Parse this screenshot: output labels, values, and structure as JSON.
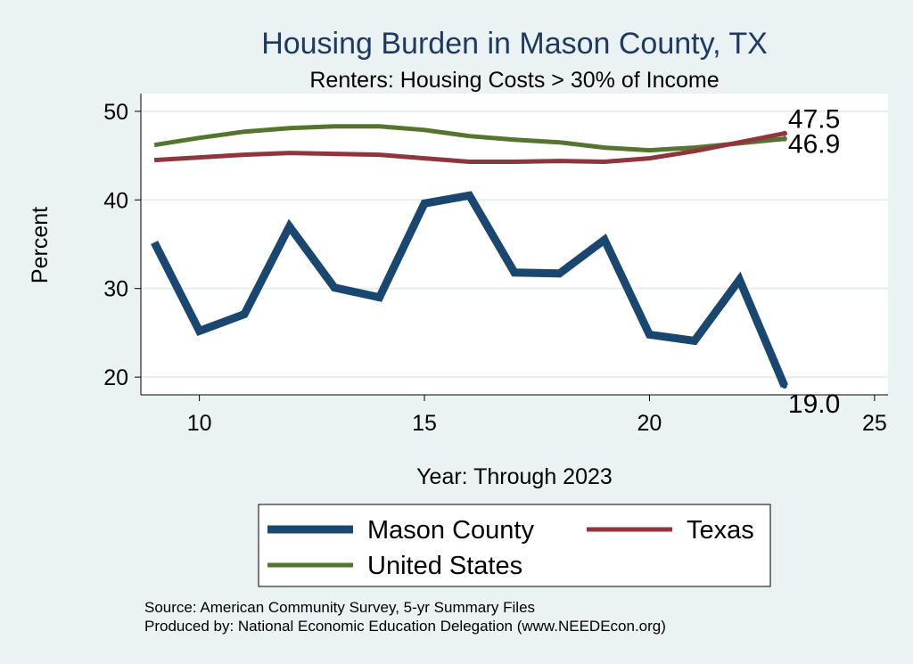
{
  "chart_data": {
    "type": "line",
    "title": "Housing Burden in Mason County, TX",
    "subtitle": "Renters: Housing Costs > 30% of Income",
    "xlabel": "Year: Through 2023",
    "ylabel": "Percent",
    "xlim": [
      8.7,
      25.3
    ],
    "ylim": [
      18,
      52
    ],
    "xticks": [
      10,
      15,
      20,
      25
    ],
    "yticks": [
      20,
      30,
      40,
      50
    ],
    "grid": true,
    "legend_position": "bottom",
    "x": [
      9,
      10,
      11,
      12,
      13,
      14,
      15,
      16,
      17,
      18,
      19,
      20,
      21,
      22,
      23
    ],
    "series": [
      {
        "name": "Mason County",
        "color": "#1a476f",
        "values": [
          35.2,
          25.2,
          27.1,
          37.0,
          30.1,
          29.0,
          39.6,
          40.5,
          31.8,
          31.7,
          35.5,
          24.8,
          24.1,
          31.0,
          19.0
        ],
        "end_label": "19.0"
      },
      {
        "name": "Texas",
        "color": "#90353b",
        "values": [
          44.5,
          44.8,
          45.1,
          45.3,
          45.2,
          45.1,
          44.7,
          44.3,
          44.3,
          44.4,
          44.3,
          44.7,
          45.5,
          46.5,
          47.5
        ],
        "end_label": "47.5"
      },
      {
        "name": "United States",
        "color": "#55752f",
        "values": [
          46.2,
          47.0,
          47.7,
          48.1,
          48.3,
          48.3,
          47.9,
          47.2,
          46.8,
          46.5,
          45.9,
          45.6,
          45.9,
          46.4,
          46.9
        ],
        "end_label": "46.9"
      }
    ],
    "notes": [
      "Source: American Community Survey, 5-yr Summary Files",
      "Produced by: National Economic Education Delegation (www.NEEDEcon.org)"
    ]
  }
}
